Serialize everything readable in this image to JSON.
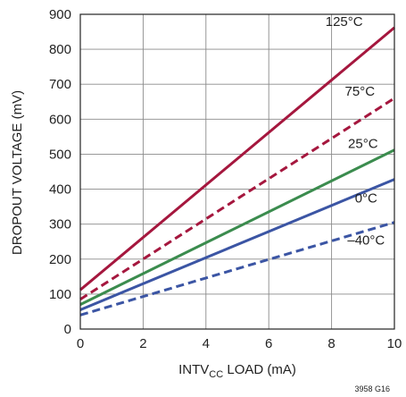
{
  "chart_data": {
    "type": "line",
    "xlabel_main": "INTV",
    "xlabel_sub": "CC",
    "xlabel_rest": " LOAD (mA)",
    "ylabel": "DROPOUT VOLTAGE (mV)",
    "xlim": [
      0,
      10
    ],
    "ylim": [
      0,
      900
    ],
    "x_ticks": [
      0,
      2,
      4,
      6,
      8,
      10
    ],
    "x_tick_labels": [
      "0",
      "2",
      "4",
      "6",
      "8",
      "10"
    ],
    "y_ticks": [
      0,
      100,
      200,
      300,
      400,
      500,
      600,
      700,
      800,
      900
    ],
    "y_tick_labels": [
      "0",
      "100",
      "200",
      "300",
      "400",
      "500",
      "600",
      "700",
      "800",
      "900"
    ],
    "grid": true,
    "figure_id": "3958 G16",
    "series": [
      {
        "name": "125°C",
        "x": [
          0,
          10
        ],
        "y": [
          112,
          862
        ],
        "color": "#a5173e",
        "dash": "solid"
      },
      {
        "name": "75°C",
        "x": [
          0,
          10
        ],
        "y": [
          85,
          660
        ],
        "color": "#a5173e",
        "dash": "dashed"
      },
      {
        "name": "25°C",
        "x": [
          0,
          10
        ],
        "y": [
          70,
          512
        ],
        "color": "#3b8c4e",
        "dash": "solid"
      },
      {
        "name": "0°C",
        "x": [
          0,
          10
        ],
        "y": [
          55,
          428
        ],
        "color": "#3b55a4",
        "dash": "solid"
      },
      {
        "name": "–40°C",
        "x": [
          0,
          10
        ],
        "y": [
          40,
          305
        ],
        "color": "#3b55a4",
        "dash": "dashed"
      }
    ]
  }
}
